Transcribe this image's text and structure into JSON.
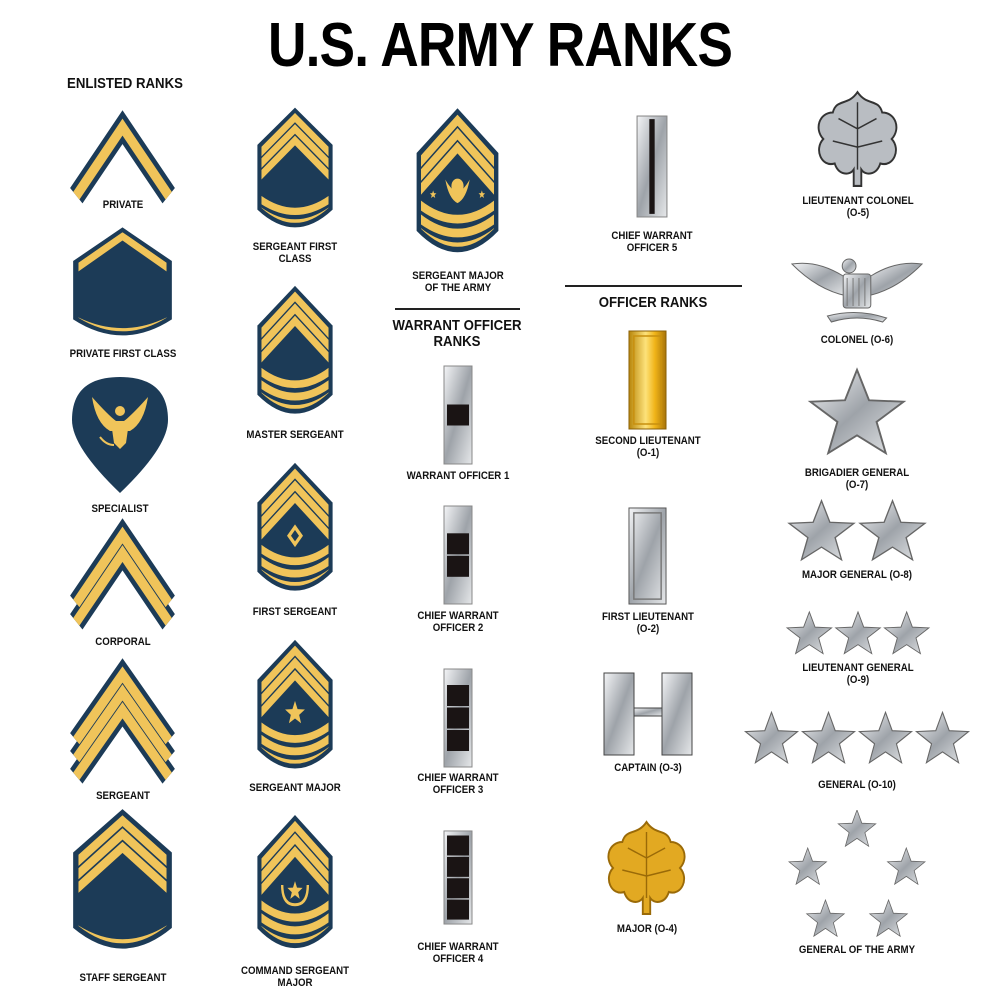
{
  "title": "U.S. ARMY RANKS",
  "sections": {
    "enlisted": "ENLISTED RANKS",
    "warrant": "WARRANT OFFICER\nRANKS",
    "officer": "OFFICER RANKS"
  },
  "colors": {
    "navy": "#1c3b57",
    "gold": "#f0c45a",
    "silver": "#c9ccd0",
    "black": "#1a1414",
    "officer_gold": "#e3a81f"
  },
  "enlisted": [
    {
      "label": "PRIVATE",
      "insignia": "chevrons",
      "chevrons": 1,
      "rockers": 0
    },
    {
      "label": "PRIVATE FIRST CLASS",
      "insignia": "shield",
      "chevrons": 1,
      "rockers": 1
    },
    {
      "label": "SPECIALIST",
      "insignia": "spade-eagle"
    },
    {
      "label": "CORPORAL",
      "insignia": "chevrons",
      "chevrons": 2,
      "rockers": 0
    },
    {
      "label": "SERGEANT",
      "insignia": "chevrons",
      "chevrons": 3,
      "rockers": 0
    },
    {
      "label": "STAFF SERGEANT",
      "insignia": "shield",
      "chevrons": 3,
      "rockers": 1
    },
    {
      "label": "SERGEANT FIRST\nCLASS",
      "insignia": "shield",
      "chevrons": 3,
      "rockers": 2
    },
    {
      "label": "MASTER SERGEANT",
      "insignia": "shield",
      "chevrons": 3,
      "rockers": 3
    },
    {
      "label": "FIRST SERGEANT",
      "insignia": "shield",
      "chevrons": 3,
      "rockers": 3,
      "device": "diamond"
    },
    {
      "label": "SERGEANT MAJOR",
      "insignia": "shield",
      "chevrons": 3,
      "rockers": 3,
      "device": "star"
    },
    {
      "label": "COMMAND SERGEANT\nMAJOR",
      "insignia": "shield",
      "chevrons": 3,
      "rockers": 3,
      "device": "wreath-star"
    },
    {
      "label": "SERGEANT MAJOR\nOF THE ARMY",
      "insignia": "shield",
      "chevrons": 3,
      "rockers": 3,
      "device": "eagle-stars"
    }
  ],
  "warrant": [
    {
      "label": "WARRANT OFFICER 1",
      "insignia": "bar-squares",
      "squares": 1
    },
    {
      "label": "CHIEF WARRANT\nOFFICER 2",
      "insignia": "bar-squares",
      "squares": 2
    },
    {
      "label": "CHIEF WARRANT\nOFFICER 3",
      "insignia": "bar-squares",
      "squares": 3
    },
    {
      "label": "CHIEF WARRANT\nOFFICER 4",
      "insignia": "bar-squares",
      "squares": 4
    },
    {
      "label": "CHIEF WARRANT\nOFFICER 5",
      "insignia": "bar-line"
    }
  ],
  "officer": [
    {
      "label": "SECOND LIEUTENANT\n(O-1)",
      "insignia": "gold-bar"
    },
    {
      "label": "FIRST LIEUTENANT\n(O-2)",
      "insignia": "silver-bar"
    },
    {
      "label": "CAPTAIN (O-3)",
      "insignia": "double-bar"
    },
    {
      "label": "MAJOR (O-4)",
      "insignia": "gold-oak-leaf"
    },
    {
      "label": "LIEUTENANT COLONEL\n(O-5)",
      "insignia": "silver-oak-leaf"
    },
    {
      "label": "COLONEL (O-6)",
      "insignia": "eagle"
    },
    {
      "label": "BRIGADIER GENERAL\n(O-7)",
      "insignia": "stars",
      "stars": 1
    },
    {
      "label": "MAJOR GENERAL (O-8)",
      "insignia": "stars",
      "stars": 2
    },
    {
      "label": "LIEUTENANT GENERAL\n(O-9)",
      "insignia": "stars",
      "stars": 3
    },
    {
      "label": "GENERAL (O-10)",
      "insignia": "stars",
      "stars": 4
    },
    {
      "label": "GENERAL OF THE ARMY",
      "insignia": "stars-pentagon",
      "stars": 5
    }
  ]
}
